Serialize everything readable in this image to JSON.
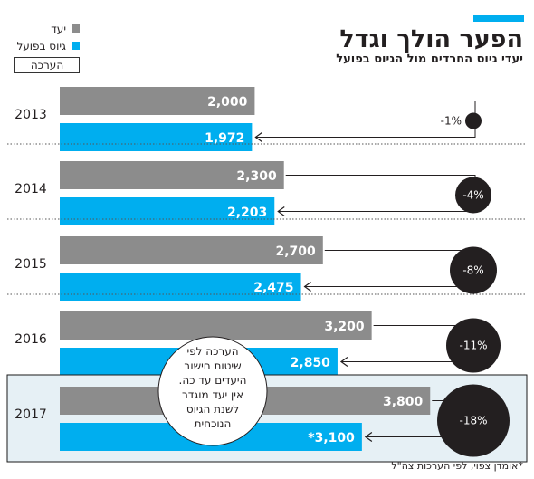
{
  "header": {
    "title": "הפער הולך וגדל",
    "subtitle": "יעדי גיוס החרדים מול הגיוס בפועל"
  },
  "legend": {
    "items": [
      {
        "label": "יעד",
        "color": "#8c8c8c"
      },
      {
        "label": "גיוס בפועל",
        "color": "#00aeef"
      }
    ],
    "estimate_label": "הערכה"
  },
  "note_bubble": {
    "lines": [
      "הערכה לפי",
      "שיטות חישוב",
      "היעדים עד כה.",
      "אין יעד מוגדר",
      "לשנת הגיוס",
      "הנוכחית"
    ]
  },
  "footnote": "*אומדן צפוי, לפי הערכות צה\"ל",
  "chart_data": {
    "type": "bar",
    "orientation": "horizontal",
    "categories": [
      "2013",
      "2014",
      "2015",
      "2016",
      "2017"
    ],
    "series": [
      {
        "name": "יעד",
        "color": "#8c8c8c",
        "values": [
          2000,
          2300,
          2700,
          3200,
          3800
        ],
        "labels": [
          "2,000",
          "2,300",
          "2,700",
          "3,200",
          "3,800"
        ]
      },
      {
        "name": "גיוס בפועל",
        "color": "#00aeef",
        "values": [
          1972,
          2203,
          2475,
          2850,
          3100
        ],
        "labels": [
          "1,972",
          "2,203",
          "2,475",
          "2,850",
          "*3,100"
        ]
      }
    ],
    "gap_labels": [
      "-1%",
      "-4%",
      "-8%",
      "-11%",
      "-18%"
    ],
    "gap_values": [
      -1,
      -4,
      -8,
      -11,
      -18
    ],
    "highlighted_category": "2017",
    "highlight_color": "#e6f0f5"
  }
}
